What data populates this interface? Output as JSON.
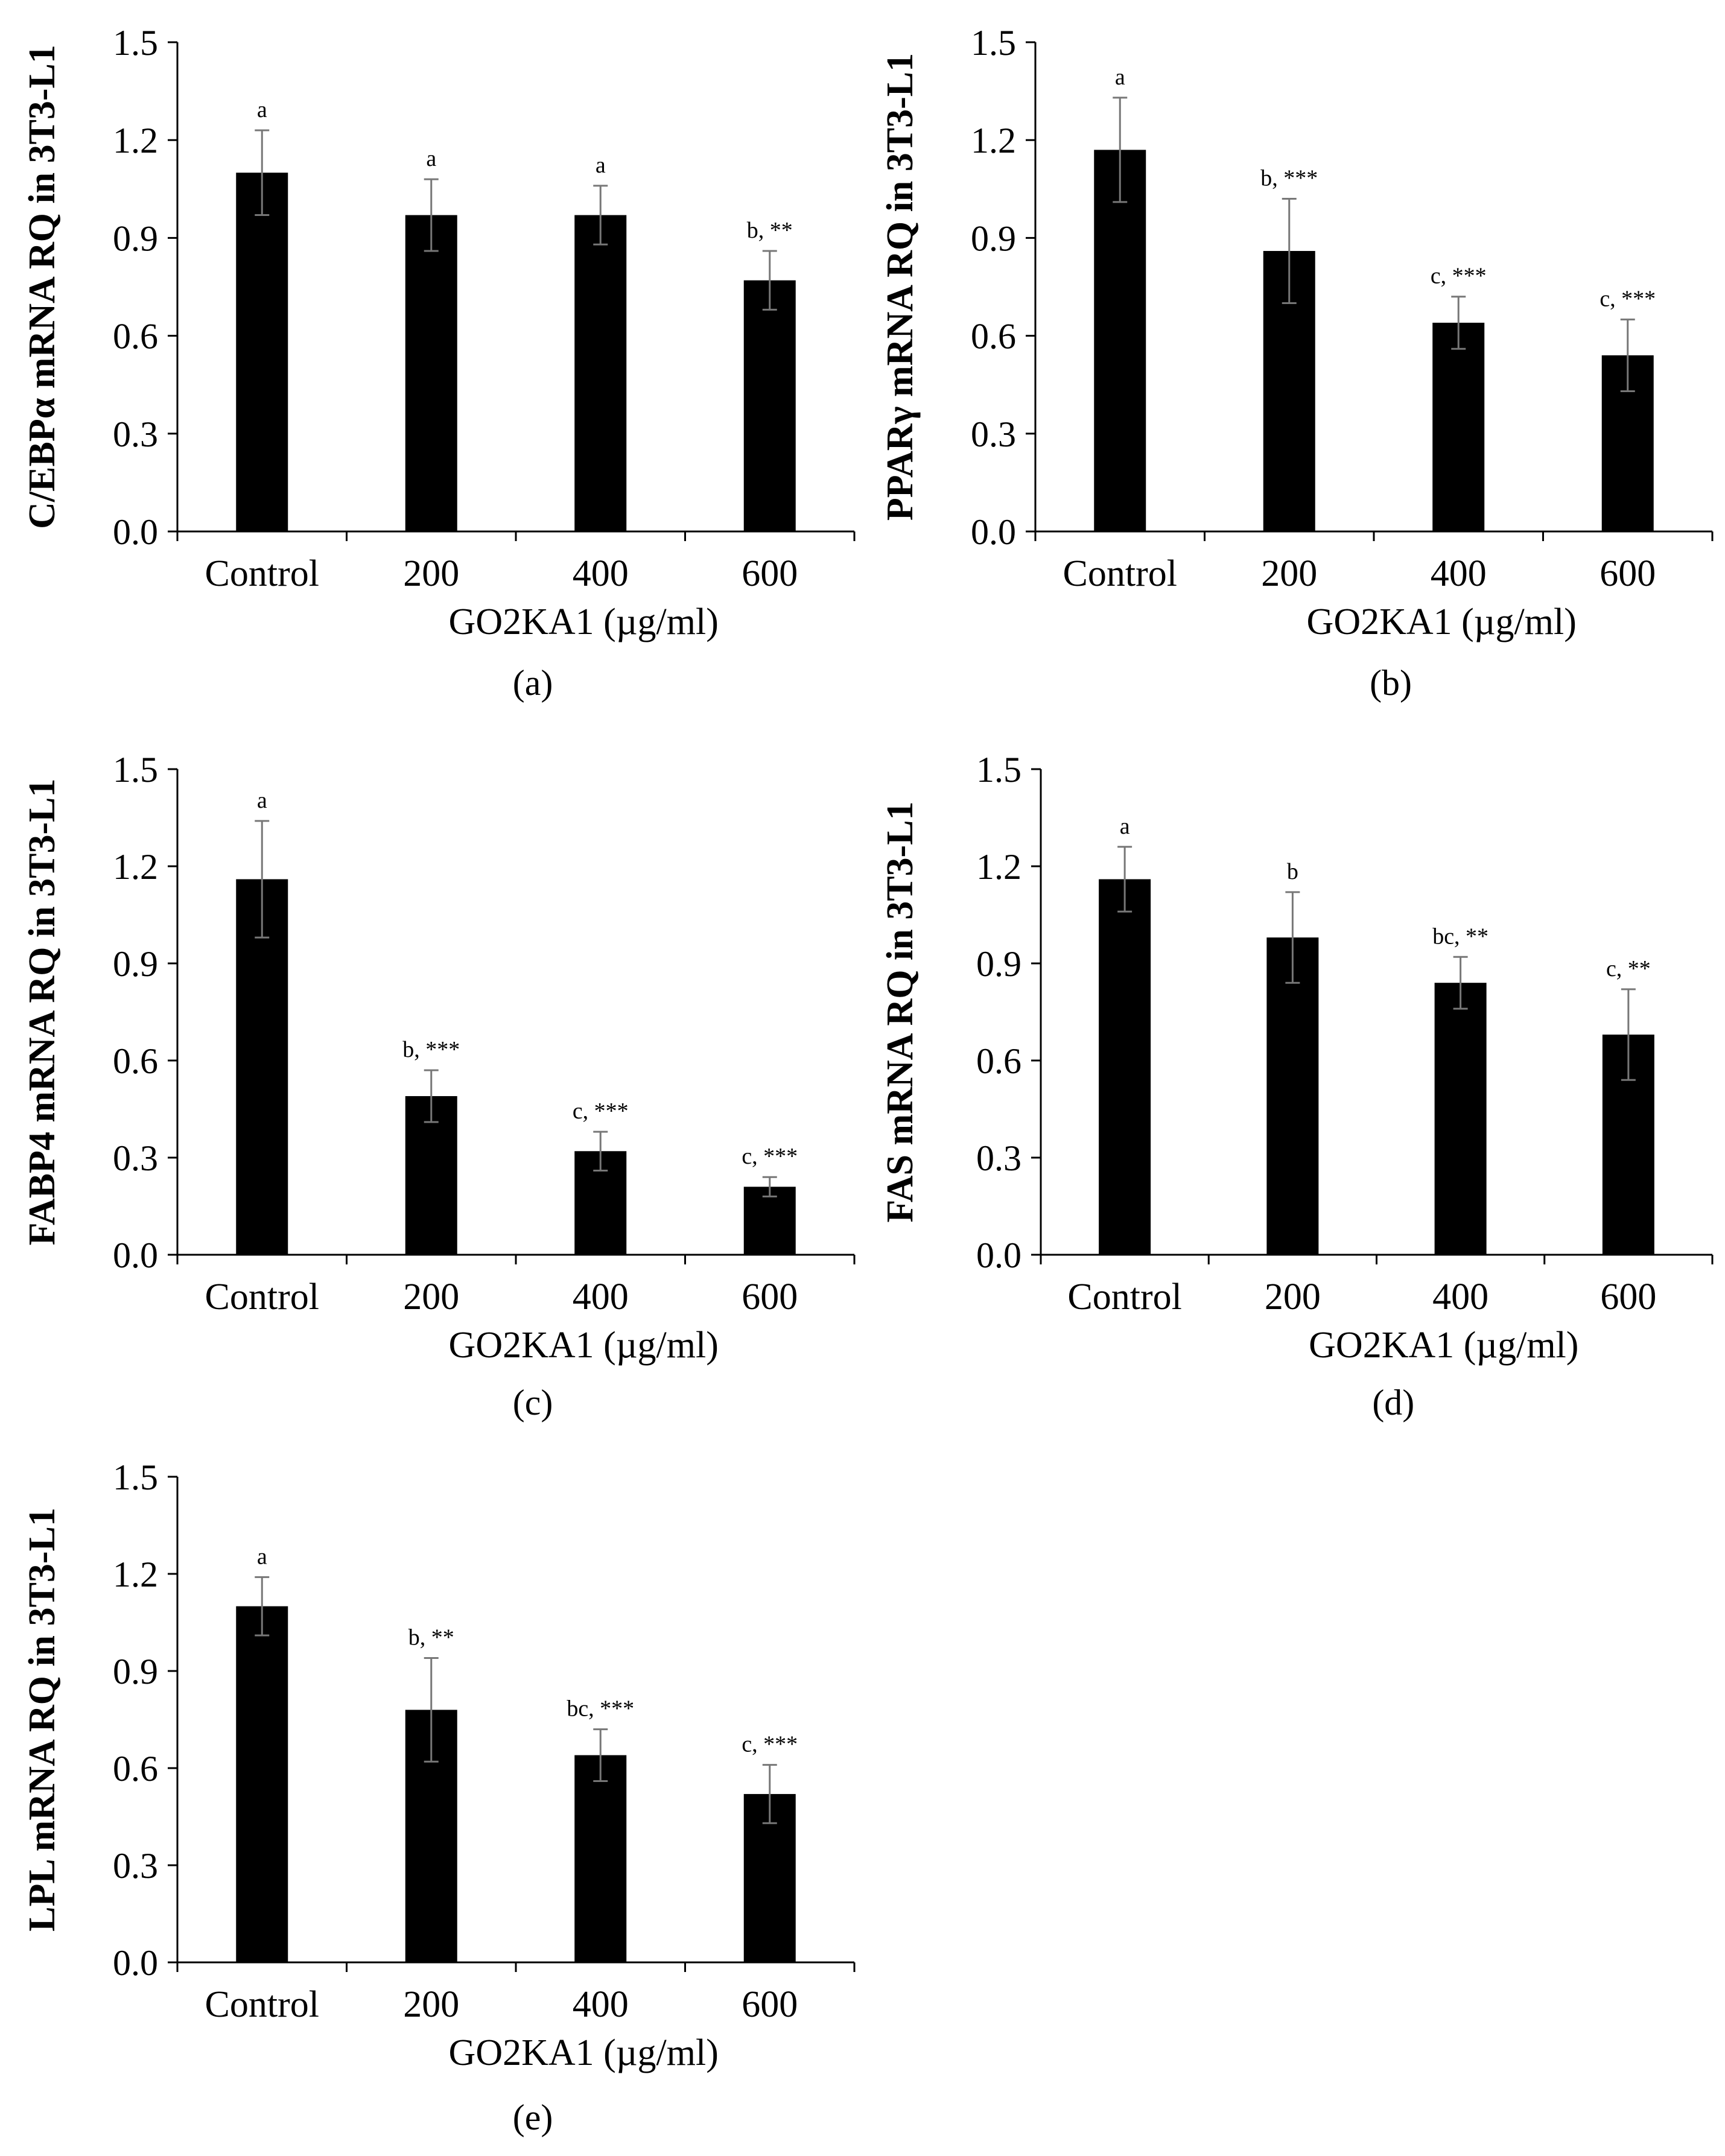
{
  "chart_data": [
    {
      "type": "bar",
      "panel_label": "(a)",
      "title": "",
      "xlabel": "GO2KA1 (µg/ml)",
      "ylabel": "C/EBPα mRNA RQ in 3T3-L1",
      "categories": [
        "Control",
        "200",
        "400",
        "600"
      ],
      "values": [
        1.1,
        0.97,
        0.97,
        0.77
      ],
      "errors": [
        0.13,
        0.11,
        0.09,
        0.09
      ],
      "annotations": [
        "a",
        "a",
        "a",
        "b, **"
      ],
      "ylim": [
        0,
        1.5
      ],
      "yticks": [
        "0.0",
        "0.3",
        "0.6",
        "0.9",
        "1.2",
        "1.5"
      ],
      "bar_color": "#000000"
    },
    {
      "type": "bar",
      "panel_label": "(b)",
      "title": "",
      "xlabel": "GO2KA1 (µg/ml)",
      "ylabel": "PPARγ mRNA RQ in 3T3-L1",
      "categories": [
        "Control",
        "200",
        "400",
        "600"
      ],
      "values": [
        1.17,
        0.86,
        0.64,
        0.54
      ],
      "errors": [
        0.16,
        0.16,
        0.08,
        0.11
      ],
      "annotations": [
        "a",
        "b, ***",
        "c, ***",
        "c, ***"
      ],
      "ylim": [
        0,
        1.5
      ],
      "yticks": [
        "0.0",
        "0.3",
        "0.6",
        "0.9",
        "1.2",
        "1.5"
      ],
      "bar_color": "#000000"
    },
    {
      "type": "bar",
      "panel_label": "(c)",
      "title": "",
      "xlabel": "GO2KA1 (µg/ml)",
      "ylabel": "FABP4 mRNA RQ in 3T3-L1",
      "categories": [
        "Control",
        "200",
        "400",
        "600"
      ],
      "values": [
        1.16,
        0.49,
        0.32,
        0.21
      ],
      "errors": [
        0.18,
        0.08,
        0.06,
        0.03
      ],
      "annotations": [
        "a",
        "b, ***",
        "c, ***",
        "c, ***"
      ],
      "ylim": [
        0,
        1.5
      ],
      "yticks": [
        "0.0",
        "0.3",
        "0.6",
        "0.9",
        "1.2",
        "1.5"
      ],
      "bar_color": "#000000"
    },
    {
      "type": "bar",
      "panel_label": "(d)",
      "title": "",
      "xlabel": "GO2KA1 (µg/ml)",
      "ylabel": "FAS mRNA RQ in 3T3-L1",
      "categories": [
        "Control",
        "200",
        "400",
        "600"
      ],
      "values": [
        1.16,
        0.98,
        0.84,
        0.68
      ],
      "errors": [
        0.1,
        0.14,
        0.08,
        0.14
      ],
      "annotations": [
        "a",
        "b",
        "bc, **",
        "c, **"
      ],
      "ylim": [
        0,
        1.5
      ],
      "yticks": [
        "0.0",
        "0.3",
        "0.6",
        "0.9",
        "1.2",
        "1.5"
      ],
      "bar_color": "#000000"
    },
    {
      "type": "bar",
      "panel_label": "(e)",
      "title": "",
      "xlabel": "GO2KA1 (µg/ml)",
      "ylabel": "LPL mRNA RQ in 3T3-L1",
      "categories": [
        "Control",
        "200",
        "400",
        "600"
      ],
      "values": [
        1.1,
        0.78,
        0.64,
        0.52
      ],
      "errors": [
        0.09,
        0.16,
        0.08,
        0.09
      ],
      "annotations": [
        "a",
        "b, **",
        "bc, ***",
        "c, ***"
      ],
      "ylim": [
        0,
        1.5
      ],
      "yticks": [
        "0.0",
        "0.3",
        "0.6",
        "0.9",
        "1.2",
        "1.5"
      ],
      "bar_color": "#000000"
    }
  ]
}
